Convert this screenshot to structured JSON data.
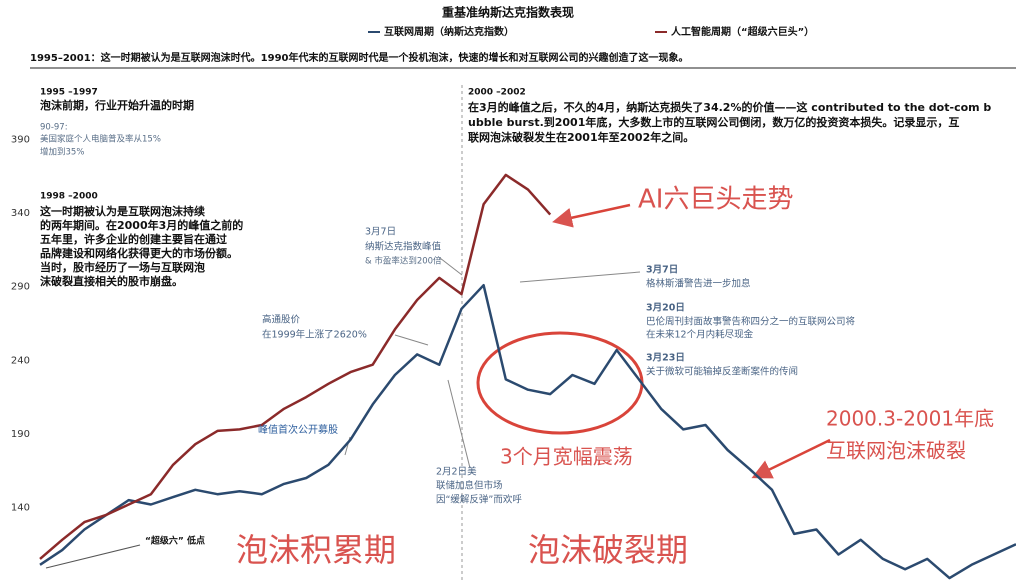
{
  "chart_data": {
    "type": "line",
    "title": "重基准纳斯达克指数表现",
    "categories": [
      null,
      null,
      null,
      null,
      null,
      null,
      null,
      null,
      null,
      null,
      null,
      null,
      null,
      null,
      null,
      null,
      null,
      null,
      null,
      null,
      null,
      null,
      null,
      null,
      null,
      null,
      null,
      null,
      null,
      null,
      null,
      null,
      null,
      null,
      null,
      null,
      null,
      null,
      null,
      null,
      null,
      null,
      null,
      null,
      null
    ],
    "series": [
      {
        "name": "互联网周期（纳斯达克指数）",
        "color": "#2b4a6f",
        "values": [
          101,
          111,
          125,
          135,
          145,
          142,
          147,
          152,
          149,
          151,
          149,
          156,
          160,
          169,
          186,
          210,
          230,
          244,
          237,
          275,
          291,
          227,
          220,
          217,
          230,
          224,
          247,
          227,
          207,
          193,
          196,
          179,
          166,
          152,
          122,
          125,
          108,
          118,
          105,
          98,
          105,
          92,
          101,
          108,
          115
        ]
      },
      {
        "name": "人工智能周期（“超级六巨头”）",
        "color": "#8b2a2a",
        "values": [
          105,
          118,
          130,
          135,
          142,
          149,
          169,
          183,
          192,
          193,
          196,
          207,
          215,
          224,
          232,
          237,
          261,
          281,
          296,
          285,
          346,
          366,
          356,
          339,
          null,
          null,
          null,
          null,
          null,
          null,
          null,
          null,
          null,
          null,
          null,
          null,
          null,
          null,
          null,
          null,
          null,
          null,
          null,
          null,
          null
        ]
      }
    ],
    "ylim": [
      90,
      440
    ],
    "yticks": [
      140,
      190,
      240,
      290,
      340,
      390
    ],
    "annotations": [
      "1995–2001：这一时期被认为是互联网泡沫时代。1990年代末的互联网时代是一个投机泡沫，快速的增长和对互联网公司的兴趣创造了这一现象。",
      "1995 –1997",
      "泡沫前期，行业开始升温的时期",
      "90-97:",
      "美国家庭个人电脑普及率从15%",
      "增加到35%",
      "1998 –2000",
      "这一时期被认为是互联网泡沫持续",
      "的两年期间。在2000年3月的峰值之前的",
      "五年里，许多企业的创建主要旨在通过",
      "品牌建设和网络化获得更大的市场份额。",
      "当时，股市经历了一场与互联网泡",
      "沫破裂直接相关的股市崩盘。",
      "3月7日",
      "纳斯达克指数峰值",
      "& 市盈率达到200倍",
      "高通股价",
      "在1999年上涨了2620%",
      "峰值首次公开募股",
      "2月2日美",
      "联储加息但市场",
      "因“缓解反弹”而欢呼",
      "“超级六” 低点",
      "2000 –2002",
      "在3月的峰值之后，不久的4月，纳斯达克损失了34.2%的价值——这 contributed to the dot-com b",
      "ubble burst.到2001年底，大多数上市的互联网公司倒闭，数万亿的投资资本损失。记录显示，互",
      "联网泡沫破裂发生在2001年至2002年之间。",
      "3月7日",
      "格林斯潘警告进一步加息",
      "3月20日",
      "巴伦周刊封面故事警告称四分之一的互联网公司将",
      "在未来12个月内耗尽现金",
      "3月23日",
      "关于微软可能输掉反垄断案件的传闻",
      "AI六巨头走势",
      "3个月宽幅震荡",
      "2000.3-2001年底",
      "互联网泡沫破裂",
      "泡沫积累期",
      "泡沫破裂期"
    ]
  }
}
